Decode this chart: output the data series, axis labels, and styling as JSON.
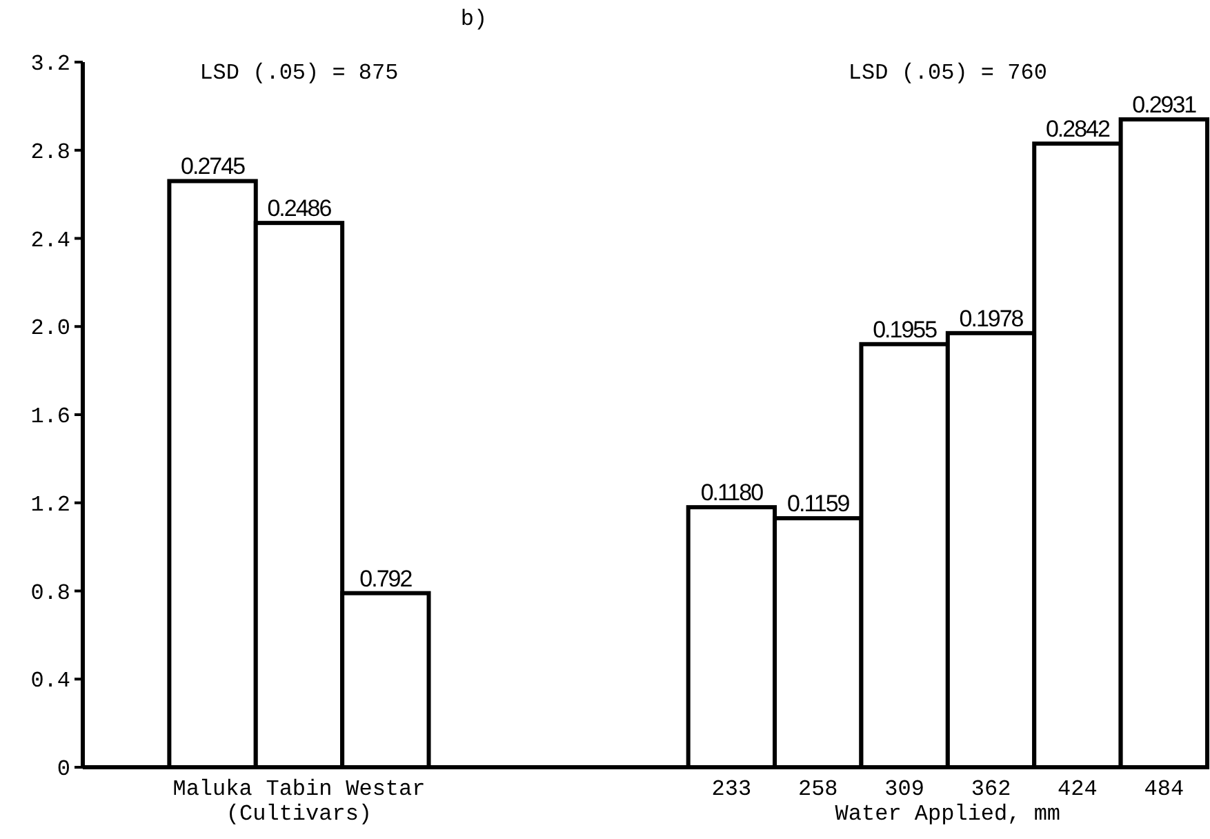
{
  "chart_data": {
    "type": "bar",
    "title": "b)",
    "categories": [
      null,
      "Maluka",
      "Tabin",
      "Westar",
      null,
      null,
      null,
      "233",
      "258",
      "309",
      "362",
      "424",
      "484"
    ],
    "values": [
      null,
      2.66,
      2.47,
      0.79,
      null,
      null,
      null,
      1.18,
      1.13,
      1.92,
      1.97,
      2.83,
      2.94
    ],
    "color": "#ffffff",
    "annotations": [
      "LSD (.05) = 875",
      "(Cultivars)",
      "LSD (.05) = 760",
      "Water Applied, mm",
      {
        "text": "0.2745",
        "x": "Maluka",
        "y": 2.66
      },
      {
        "text": "0.2486",
        "x": "Tabin",
        "y": 2.47
      },
      {
        "text": "0.792",
        "x": "Westar",
        "y": 0.79
      },
      {
        "text": "0.1180",
        "x": "233",
        "y": 1.18
      },
      {
        "text": "0.1159",
        "x": "258",
        "y": 1.13
      },
      {
        "text": "0.1955",
        "x": "309",
        "y": 1.92
      },
      {
        "text": "0.1978",
        "x": "362",
        "y": 1.97
      },
      {
        "text": "0.2842",
        "x": "424",
        "y": 2.83
      },
      {
        "text": "0.2931",
        "x": "484",
        "y": 2.94
      }
    ],
    "ylim": [
      0,
      3.2
    ],
    "yticks": [
      0,
      0.4,
      0.8,
      1.2,
      1.6,
      {
        "value": 2,
        "label": "2.0"
      },
      2.4,
      2.8,
      3.2
    ]
  }
}
